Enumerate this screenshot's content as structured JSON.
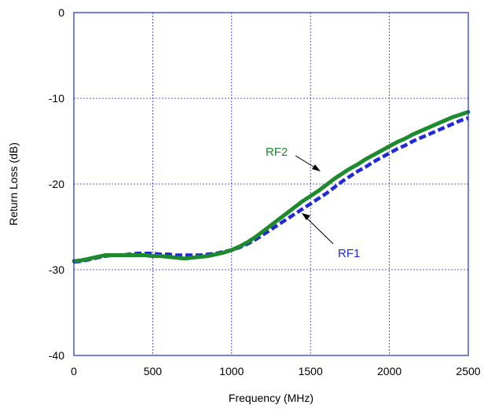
{
  "chart_data": {
    "type": "line",
    "title": "",
    "xlabel": "Frequency (MHz)",
    "ylabel": "Return Loss (dB)",
    "xlim": [
      0,
      2500
    ],
    "ylim": [
      -40,
      0
    ],
    "xticks": [
      0,
      500,
      1000,
      1500,
      2000,
      2500
    ],
    "yticks": [
      -40,
      -30,
      -20,
      -10,
      0
    ],
    "xtick_labels": [
      "0",
      "500",
      "1000",
      "1500",
      "2000",
      "2500"
    ],
    "ytick_labels": [
      "-40",
      "-30",
      "-20",
      "-10",
      "0"
    ],
    "grid": true,
    "series": [
      {
        "name": "RF1",
        "color": "#1f2ad6",
        "style": "dashed",
        "x": [
          0,
          50,
          100,
          150,
          200,
          250,
          300,
          350,
          400,
          450,
          500,
          550,
          600,
          650,
          700,
          750,
          800,
          850,
          900,
          950,
          1000,
          1050,
          1100,
          1150,
          1200,
          1250,
          1300,
          1350,
          1400,
          1450,
          1500,
          1550,
          1600,
          1650,
          1700,
          1750,
          1800,
          1850,
          1900,
          1950,
          2000,
          2050,
          2100,
          2150,
          2200,
          2250,
          2300,
          2350,
          2400,
          2450,
          2500
        ],
        "y": [
          -29.1,
          -29.0,
          -28.8,
          -28.6,
          -28.4,
          -28.3,
          -28.3,
          -28.2,
          -28.1,
          -28.1,
          -28.1,
          -28.2,
          -28.2,
          -28.3,
          -28.3,
          -28.3,
          -28.3,
          -28.2,
          -28.1,
          -27.9,
          -27.7,
          -27.4,
          -27.0,
          -26.5,
          -25.9,
          -25.3,
          -24.7,
          -24.1,
          -23.5,
          -22.9,
          -22.3,
          -21.7,
          -21.1,
          -20.4,
          -19.7,
          -19.1,
          -18.5,
          -18.0,
          -17.4,
          -16.9,
          -16.4,
          -15.9,
          -15.5,
          -15.0,
          -14.6,
          -14.2,
          -13.8,
          -13.4,
          -13.0,
          -12.6,
          -12.3
        ]
      },
      {
        "name": "RF2",
        "color": "#1e8a2e",
        "style": "solid",
        "x": [
          0,
          50,
          100,
          150,
          200,
          250,
          300,
          350,
          400,
          450,
          500,
          550,
          600,
          650,
          700,
          750,
          800,
          850,
          900,
          950,
          1000,
          1050,
          1100,
          1150,
          1200,
          1250,
          1300,
          1350,
          1400,
          1450,
          1500,
          1550,
          1600,
          1650,
          1700,
          1750,
          1800,
          1850,
          1900,
          1950,
          2000,
          2050,
          2100,
          2150,
          2200,
          2250,
          2300,
          2350,
          2400,
          2450,
          2500
        ],
        "y": [
          -29.0,
          -28.9,
          -28.7,
          -28.5,
          -28.3,
          -28.3,
          -28.3,
          -28.3,
          -28.3,
          -28.3,
          -28.4,
          -28.4,
          -28.5,
          -28.6,
          -28.7,
          -28.6,
          -28.5,
          -28.4,
          -28.2,
          -28.0,
          -27.7,
          -27.3,
          -26.8,
          -26.2,
          -25.5,
          -24.8,
          -24.1,
          -23.4,
          -22.7,
          -22.0,
          -21.4,
          -20.8,
          -20.1,
          -19.4,
          -18.8,
          -18.2,
          -17.7,
          -17.1,
          -16.6,
          -16.1,
          -15.6,
          -15.1,
          -14.7,
          -14.2,
          -13.8,
          -13.4,
          -13.0,
          -12.6,
          -12.2,
          -11.9,
          -11.6
        ]
      }
    ],
    "annotations": [
      {
        "text": "RF2",
        "color": "#1e8a2e"
      },
      {
        "text": "RF1",
        "color": "#1f2ad6"
      }
    ]
  }
}
